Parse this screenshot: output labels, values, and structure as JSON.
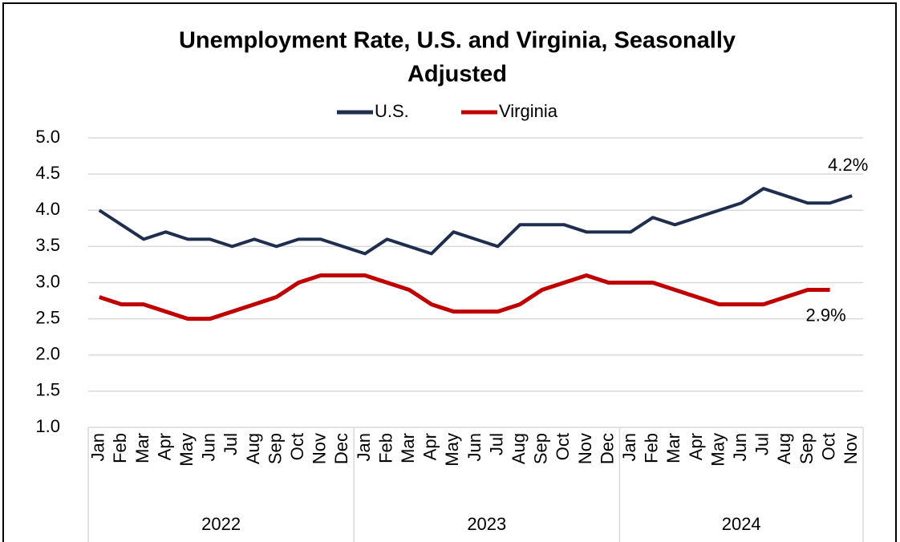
{
  "chart_data": {
    "type": "line",
    "title": "Unemployment Rate, U.S. and Virginia, Seasonally",
    "title_line2": "Adjusted",
    "categories": [
      "Jan",
      "Feb",
      "Mar",
      "Apr",
      "May",
      "Jun",
      "Jul",
      "Aug",
      "Sep",
      "Oct",
      "Nov",
      "Dec",
      "Jan",
      "Feb",
      "Mar",
      "Apr",
      "May",
      "Jun",
      "Jul",
      "Aug",
      "Sep",
      "Oct",
      "Nov",
      "Dec",
      "Jan",
      "Feb",
      "Mar",
      "Apr",
      "May",
      "Jun",
      "Jul",
      "Aug",
      "Sep",
      "Oct",
      "Nov"
    ],
    "category_groups": [
      "2022",
      "2023",
      "2024"
    ],
    "series": [
      {
        "name": "U.S.",
        "color": "#1f2d4e",
        "values": [
          4.0,
          3.8,
          3.6,
          3.7,
          3.6,
          3.6,
          3.5,
          3.6,
          3.5,
          3.6,
          3.6,
          3.5,
          3.4,
          3.6,
          3.5,
          3.4,
          3.7,
          3.6,
          3.5,
          3.8,
          3.8,
          3.8,
          3.7,
          3.7,
          3.7,
          3.9,
          3.8,
          3.9,
          4.0,
          4.1,
          4.3,
          4.2,
          4.1,
          4.1,
          4.2
        ],
        "value_labels": [
          null,
          null,
          null,
          null,
          null,
          null,
          null,
          null,
          null,
          null,
          null,
          null,
          null,
          null,
          null,
          null,
          null,
          null,
          null,
          null,
          null,
          null,
          null,
          null,
          null,
          null,
          null,
          null,
          null,
          null,
          null,
          null,
          null,
          null,
          "4.2%"
        ]
      },
      {
        "name": "Virginia",
        "color": "#c00000",
        "values": [
          2.8,
          2.7,
          2.7,
          2.6,
          2.5,
          2.5,
          2.6,
          2.7,
          2.8,
          3.0,
          3.1,
          3.1,
          3.1,
          3.0,
          2.9,
          2.7,
          2.6,
          2.6,
          2.6,
          2.7,
          2.9,
          3.0,
          3.1,
          3.0,
          3.0,
          3.0,
          2.9,
          2.8,
          2.7,
          2.7,
          2.7,
          2.8,
          2.9,
          2.9,
          null
        ],
        "value_labels": [
          null,
          null,
          null,
          null,
          null,
          null,
          null,
          null,
          null,
          null,
          null,
          null,
          null,
          null,
          null,
          null,
          null,
          null,
          null,
          null,
          null,
          null,
          null,
          null,
          null,
          null,
          null,
          null,
          null,
          null,
          null,
          null,
          null,
          "2.9%",
          null
        ]
      }
    ],
    "ylim": [
      1.0,
      5.0
    ],
    "yticks": [
      {
        "value": 1.0,
        "label": "1.0"
      },
      {
        "value": 1.5,
        "label": "1.5"
      },
      {
        "value": 2.0,
        "label": "2.0"
      },
      {
        "value": 2.5,
        "label": "2.5"
      },
      {
        "value": 3.0,
        "label": "3.0"
      },
      {
        "value": 3.5,
        "label": "3.5"
      },
      {
        "value": 4.0,
        "label": "4.0"
      },
      {
        "value": 4.5,
        "label": "4.5"
      },
      {
        "value": 5.0,
        "label": "5.0"
      }
    ],
    "grid": true,
    "legend": "top"
  }
}
